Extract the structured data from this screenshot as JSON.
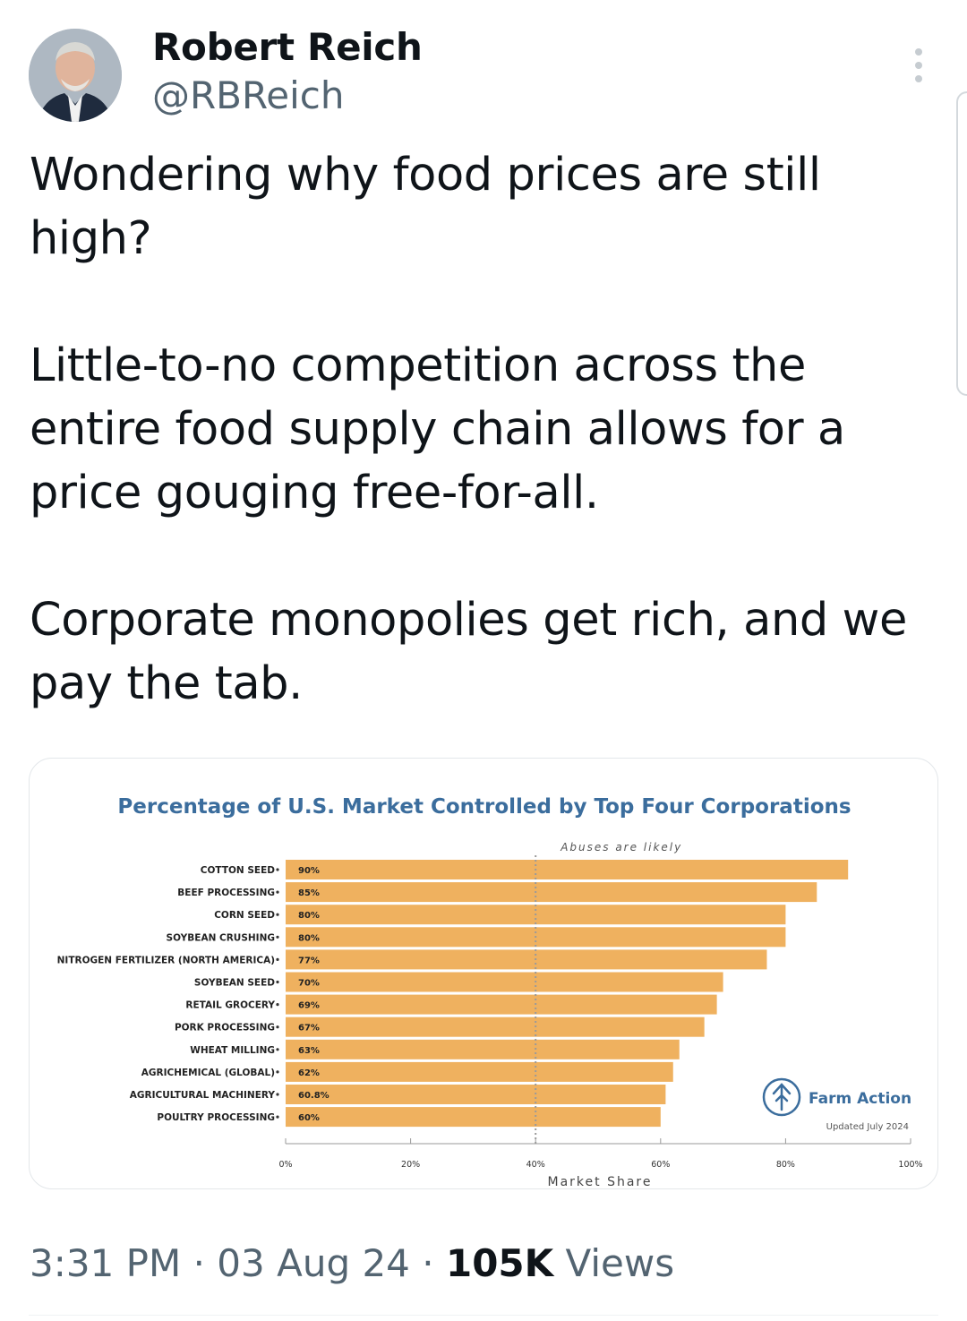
{
  "author": {
    "name": "Robert Reich",
    "handle": "@RBReich",
    "avatar_icon": "avatar-photo"
  },
  "tweet": {
    "paragraphs": [
      "Wondering why food prices are still high?",
      "Little-to-no competition across the entire food supply chain allows for a price gouging free-for-all.",
      "Corporate monopolies get rich, and we pay the tab."
    ]
  },
  "meta": {
    "time": "3:31 PM",
    "date": "03 Aug 24",
    "views_count": "105K",
    "views_label": "Views"
  },
  "colors": {
    "bar": "#efb15f",
    "chart_title": "#3b6d9d",
    "threshold_line": "#9a9a9a"
  },
  "chart_data": {
    "type": "bar",
    "orientation": "horizontal",
    "title": "Percentage of U.S. Market Controlled by Top Four Corporations",
    "annotation": "Abuses are likely",
    "threshold": 40,
    "xlabel": "Market Share",
    "xlim": [
      0,
      100
    ],
    "x_ticks": [
      "0%",
      "20%",
      "40%",
      "60%",
      "80%",
      "100%"
    ],
    "categories": [
      "COTTON SEED",
      "BEEF PROCESSING",
      "CORN SEED",
      "SOYBEAN CRUSHING",
      "NITROGEN FERTILIZER (NORTH AMERICA)",
      "SOYBEAN SEED",
      "RETAIL GROCERY",
      "PORK PROCESSING",
      "WHEAT MILLING",
      "AGRICHEMICAL (GLOBAL)",
      "AGRICULTURAL MACHINERY",
      "POULTRY PROCESSING"
    ],
    "values": [
      90,
      85,
      80,
      80,
      77,
      70,
      69,
      67,
      63,
      62,
      60.8,
      60
    ],
    "value_labels": [
      "90%",
      "85%",
      "80%",
      "80%",
      "77%",
      "70%",
      "69%",
      "67%",
      "63%",
      "62%",
      "60.8%",
      "60%"
    ],
    "source": {
      "brand": "Farm Action",
      "updated": "Updated July 2024",
      "logo_icon": "farm-action-logo-icon"
    }
  }
}
